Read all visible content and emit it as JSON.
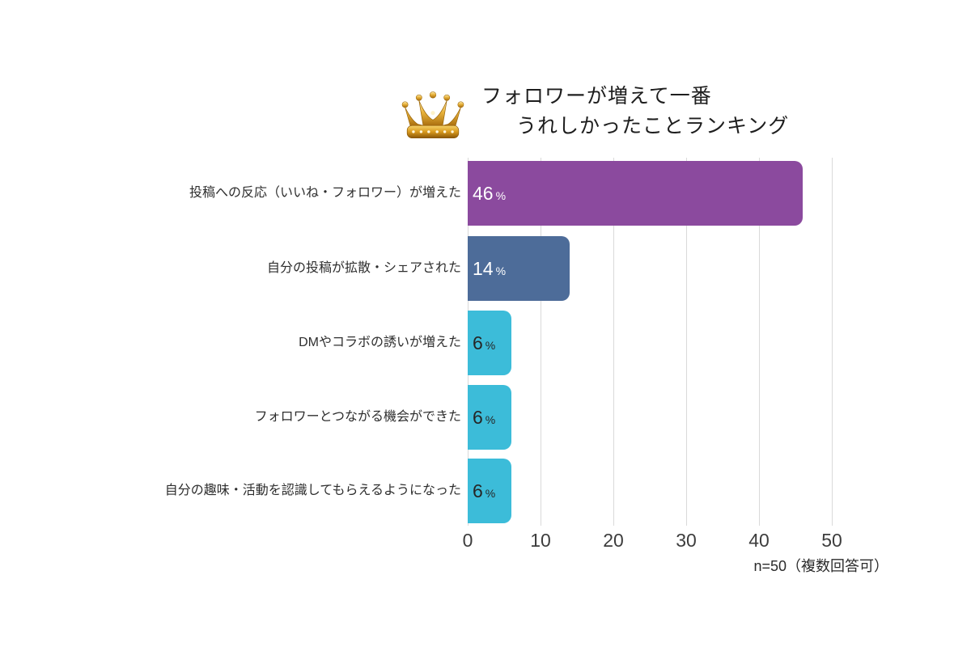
{
  "header": {
    "title_line1": "フォロワーが増えて一番",
    "title_line2": "うれしかったことランキング",
    "crown_icon": "crown-icon"
  },
  "chart_data": {
    "type": "bar",
    "orientation": "horizontal",
    "title": "フォロワーが増えて一番うれしかったことランキング",
    "categories": [
      "投稿への反応（いいね・フォロワー）が増えた",
      "自分の投稿が拡散・シェアされた",
      "DMやコラボの誘いが増えた",
      "フォロワーとつながる機会ができた",
      "自分の趣味・活動を認識してもらえるようになった"
    ],
    "values": [
      46,
      14,
      6,
      6,
      6
    ],
    "rows": [
      {
        "label": "投稿への反応（いいね・フォロワー）が増えた",
        "value": 46,
        "display_value": "46",
        "unit": "%",
        "color": "#8b4a9e",
        "value_color": "#ffffff"
      },
      {
        "label": "自分の投稿が拡散・シェアされた",
        "value": 14,
        "display_value": "14",
        "unit": "%",
        "color": "#4d6c99",
        "value_color": "#ffffff"
      },
      {
        "label": "DMやコラボの誘いが増えた",
        "value": 6,
        "display_value": "6",
        "unit": "%",
        "color": "#3cbcd9",
        "value_color": "#262626"
      },
      {
        "label": "フォロワーとつながる機会ができた",
        "value": 6,
        "display_value": "6",
        "unit": "%",
        "color": "#3cbcd9",
        "value_color": "#262626"
      },
      {
        "label": "自分の趣味・活動を認識してもらえるようになった",
        "value": 6,
        "display_value": "6",
        "unit": "%",
        "color": "#3cbcd9",
        "value_color": "#262626"
      }
    ],
    "xlabel": "",
    "ylabel": "",
    "xlim": [
      0,
      50
    ],
    "x_ticks": [
      0,
      10,
      20,
      30,
      40,
      50
    ],
    "gridlines": [
      0,
      10,
      20,
      30,
      40,
      50
    ],
    "grid_color": "#dadada",
    "grid": "on",
    "legend": "none",
    "note": "n=50（複数回答可）"
  }
}
